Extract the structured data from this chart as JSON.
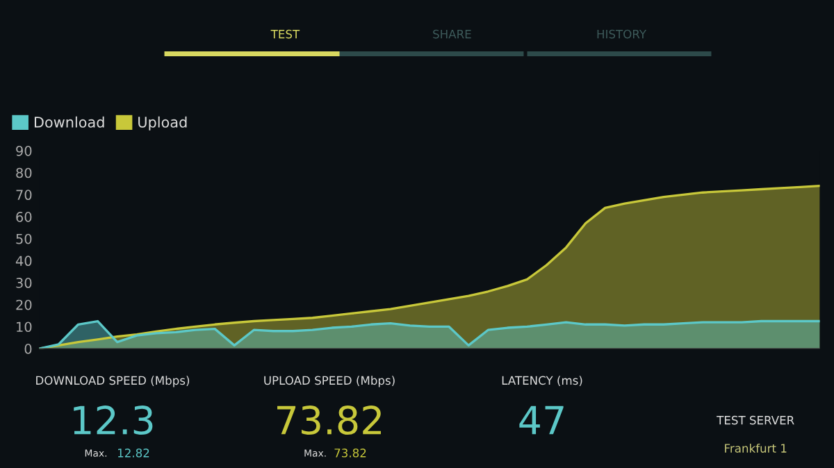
{
  "chart_data": {
    "type": "area",
    "legend": "top left",
    "grid": false,
    "ylim": [
      0,
      90
    ],
    "yticks": [
      0,
      10,
      20,
      30,
      40,
      50,
      60,
      70,
      80,
      90
    ],
    "categories": [
      null,
      null,
      null,
      null,
      null,
      null,
      null,
      null,
      null,
      null,
      null,
      null,
      null,
      null,
      null,
      null,
      null,
      null,
      null,
      null,
      null,
      null,
      null,
      null,
      null,
      null,
      null,
      null,
      null,
      null,
      null,
      null,
      null,
      null,
      null,
      null,
      null,
      null,
      null,
      null,
      null
    ],
    "series": [
      {
        "name": "Upload",
        "color": "#c8c83a",
        "values": [
          0,
          1.5,
          3,
          4.2,
          5.5,
          6.5,
          7.8,
          9,
          10,
          11,
          11.8,
          12.5,
          13,
          13.5,
          14,
          15,
          16,
          17,
          18,
          19.5,
          21,
          22.5,
          24,
          26,
          28.5,
          31.5,
          38,
          46,
          57,
          64,
          66,
          67.5,
          69,
          70,
          71,
          71.5,
          72,
          72.5,
          73,
          73.5,
          74
        ]
      },
      {
        "name": "Download",
        "color": "#5cc8c8",
        "values": [
          0,
          2,
          11,
          12.5,
          3,
          6,
          7,
          7.5,
          8.5,
          9,
          1.5,
          8.5,
          8,
          8,
          8.5,
          9.5,
          10,
          11,
          11.5,
          10.5,
          10,
          10,
          1.5,
          8.5,
          9.5,
          10,
          11,
          12,
          11,
          11,
          10.5,
          11,
          11,
          11.5,
          12,
          12,
          12,
          12.5,
          12.5,
          12.5,
          12.5
        ]
      }
    ],
    "annotations": [
      "TEST",
      "SHARE",
      "HISTORY",
      "DOWNLOAD SPEED (Mbps)",
      "12.3",
      "Max.",
      "12.82",
      "UPLOAD SPEED (Mbps)",
      "73.82",
      "Max.",
      "73.82",
      "LATENCY (ms)",
      "47",
      "TEST SERVER",
      "Frankfurt 1"
    ]
  }
}
